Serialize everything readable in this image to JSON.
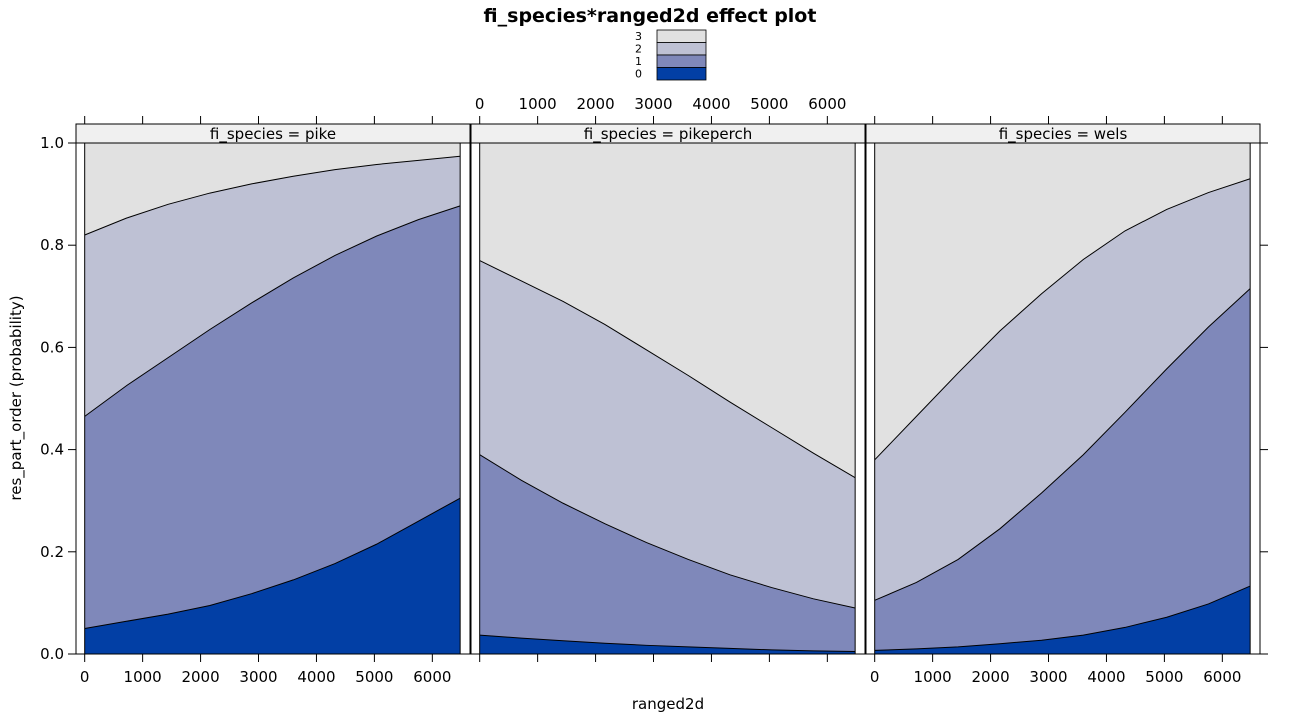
{
  "chart_data": {
    "type": "area",
    "title": "fi_species*ranged2d effect plot",
    "xlabel": "ranged2d",
    "ylabel": "res_part_order (probability)",
    "xlim": [
      -150,
      6650
    ],
    "ylim": [
      0,
      1
    ],
    "x_ticks": [
      0,
      1000,
      2000,
      3000,
      4000,
      5000,
      6000
    ],
    "y_ticks": [
      0.0,
      0.2,
      0.4,
      0.6,
      0.8,
      1.0
    ],
    "y_tick_labels": [
      "0.0",
      "0.2",
      "0.4",
      "0.6",
      "0.8",
      "1.0"
    ],
    "stacked": true,
    "legend": {
      "position": "top",
      "entries": [
        {
          "label": "3",
          "color": "#e1e1e1"
        },
        {
          "label": "2",
          "color": "#bec1d4"
        },
        {
          "label": "1",
          "color": "#7f88ba"
        },
        {
          "label": "0",
          "color": "#023fa5"
        }
      ]
    },
    "colors": {
      "0": "#023fa5",
      "1": "#7f88ba",
      "2": "#bec1d4",
      "3": "#e1e1e1"
    },
    "x": [
      0,
      720,
      1440,
      2160,
      2880,
      3600,
      4320,
      5040,
      5760,
      6480
    ],
    "panels": [
      {
        "strip": "fi_species = pike",
        "cumulative": {
          "0": [
            0.05,
            0.064,
            0.078,
            0.095,
            0.118,
            0.145,
            0.177,
            0.215,
            0.26,
            0.305
          ],
          "1": [
            0.465,
            0.525,
            0.58,
            0.635,
            0.687,
            0.736,
            0.78,
            0.818,
            0.85,
            0.877
          ],
          "2": [
            0.82,
            0.853,
            0.88,
            0.902,
            0.92,
            0.935,
            0.948,
            0.958,
            0.966,
            0.974
          ]
        }
      },
      {
        "strip": "fi_species = pikeperch",
        "cumulative": {
          "0": [
            0.037,
            0.031,
            0.026,
            0.021,
            0.017,
            0.014,
            0.011,
            0.008,
            0.006,
            0.005
          ],
          "1": [
            0.39,
            0.34,
            0.295,
            0.255,
            0.218,
            0.185,
            0.155,
            0.13,
            0.108,
            0.09
          ],
          "2": [
            0.77,
            0.73,
            0.69,
            0.645,
            0.595,
            0.545,
            0.493,
            0.443,
            0.393,
            0.345
          ]
        }
      },
      {
        "strip": "fi_species = wels",
        "cumulative": {
          "0": [
            0.007,
            0.01,
            0.014,
            0.02,
            0.027,
            0.037,
            0.052,
            0.072,
            0.098,
            0.133
          ],
          "1": [
            0.105,
            0.14,
            0.185,
            0.245,
            0.315,
            0.39,
            0.473,
            0.558,
            0.64,
            0.715
          ],
          "2": [
            0.38,
            0.465,
            0.55,
            0.632,
            0.705,
            0.772,
            0.828,
            0.87,
            0.903,
            0.93
          ]
        }
      }
    ]
  }
}
